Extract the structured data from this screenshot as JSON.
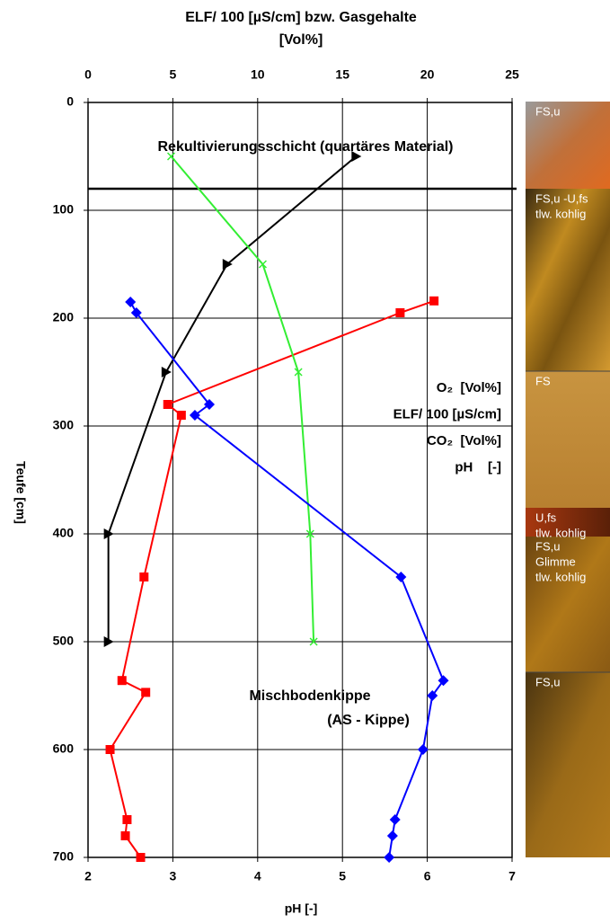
{
  "chart_data": {
    "type": "line",
    "title_lines": [
      "ELF/ 100 [µS/cm] bzw. Gasgehalte",
      "[Vol%]"
    ],
    "xlabel": "pH [-]",
    "ylabel": "Teufe [cm]",
    "xlim": [
      0,
      25
    ],
    "xticks": [
      0,
      5,
      10,
      15,
      20,
      25
    ],
    "x2lim": [
      2,
      7
    ],
    "x2ticks": [
      2,
      3,
      4,
      5,
      6,
      7
    ],
    "ylim": [
      0,
      700
    ],
    "yticks": [
      0,
      100,
      200,
      300,
      400,
      500,
      600,
      700
    ],
    "y_inverted": true,
    "grid": true,
    "hline": 80,
    "annotations": [
      "Rekultivierungsschicht (quartäres Material)",
      "Mischbodenkippe",
      "(AS - Kippe)"
    ],
    "series": [
      {
        "name": "O₂  [Vol%]",
        "color": "#000000",
        "marker": "triangle",
        "axis": "x",
        "values": [
          15.8,
          8.2,
          4.6,
          1.2,
          1.2
        ],
        "depths": [
          50,
          150,
          250,
          400,
          500
        ]
      },
      {
        "name": "ELF/ 100 [µS/cm]",
        "color": "#ff0000",
        "marker": "square",
        "axis": "x",
        "values": [
          20.4,
          18.4,
          4.7,
          5.5,
          3.3,
          2.0,
          3.4,
          1.3,
          2.3,
          2.2,
          3.1
        ],
        "depths": [
          184,
          195,
          280,
          290,
          440,
          536,
          547,
          600,
          665,
          680,
          700
        ]
      },
      {
        "name": "CO₂  [Vol%]",
        "color": "#33ee33",
        "marker": "x",
        "axis": "x",
        "values": [
          4.9,
          10.3,
          12.4,
          13.1,
          13.3
        ],
        "depths": [
          50,
          150,
          250,
          400,
          500
        ]
      },
      {
        "name": "pH    [-]",
        "color": "#0000ff",
        "marker": "diamond",
        "axis": "x2",
        "values": [
          2.5,
          2.57,
          3.43,
          3.26,
          5.69,
          6.19,
          6.06,
          5.95,
          5.62,
          5.59,
          5.55
        ],
        "depths": [
          185,
          195,
          280,
          290,
          440,
          536,
          550,
          600,
          665,
          680,
          700
        ]
      }
    ]
  },
  "soil_column": {
    "layers": [
      {
        "lines": [
          "FS,u"
        ]
      },
      {
        "lines": [
          "FS,u -U,fs",
          "tlw. kohlig"
        ]
      },
      {
        "lines": [
          "FS"
        ]
      },
      {
        "lines": [
          "U,fs",
          "tlw. kohlig"
        ]
      },
      {
        "lines": [
          "FS,u",
          "Glimme",
          "tlw. kohlig"
        ]
      },
      {
        "lines": [
          "FS,u"
        ]
      }
    ]
  }
}
